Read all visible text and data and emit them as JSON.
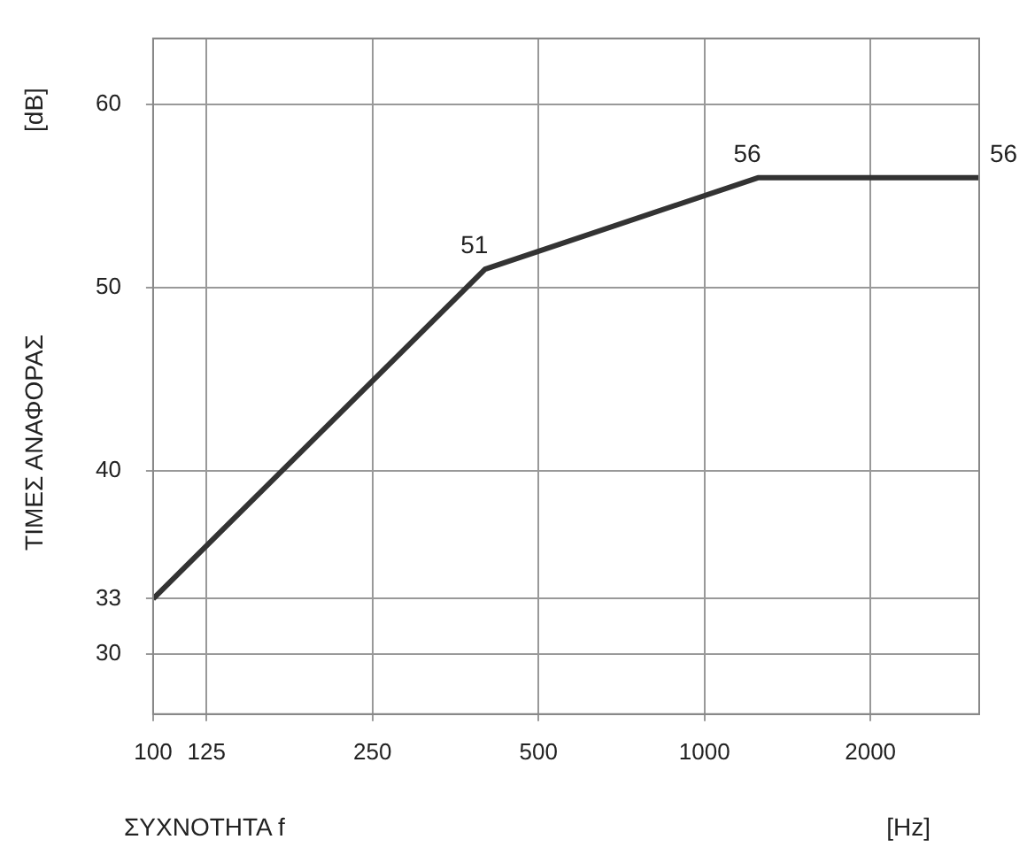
{
  "chart_data": {
    "type": "line",
    "xlabel": "ΣΥΧΝΟΤΗΤΑ f",
    "ylabel": "ΤΙΜΕΣ ΑΝΑΦΟΡΑΣ",
    "annotations": [
      "[dB]",
      "[Hz]"
    ],
    "x": [
      100,
      400,
      1250,
      3150
    ],
    "log": "x",
    "series": [
      {
        "color": "#333333",
        "values": [
          33,
          51,
          56,
          56
        ],
        "value_labels": [
          null,
          "51",
          "56",
          "56"
        ]
      }
    ],
    "xlim": [
      100,
      3150
    ],
    "xticks": [
      100,
      125,
      250,
      500,
      1000,
      2000
    ],
    "ylim": [
      26.7,
      63.6
    ],
    "yticks": [
      30,
      33,
      40,
      50,
      60
    ],
    "grid": true,
    "legend": false,
    "marker": "none",
    "line_style": "solid"
  }
}
